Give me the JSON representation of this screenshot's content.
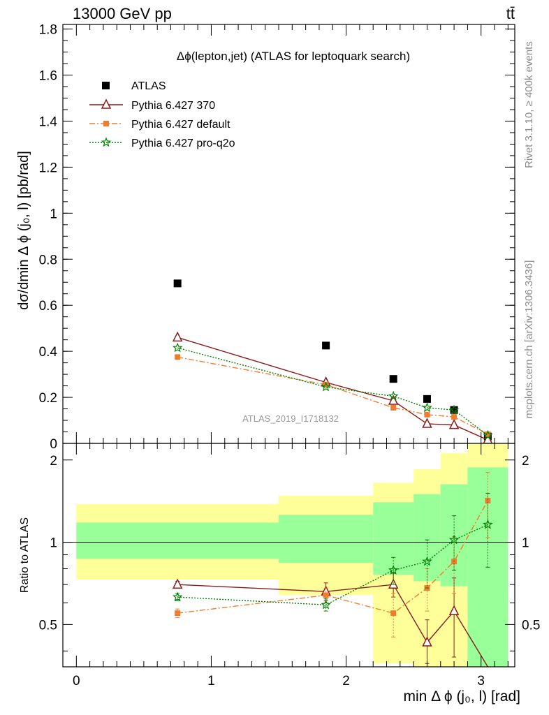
{
  "header": {
    "left": "13000 GeV pp",
    "right": "tt̄"
  },
  "side_labels": {
    "rivet": "Rivet 3.1.10, ≥ 400k events",
    "mcplots": "mcplots.cern.ch [arXiv:1306.3436]"
  },
  "analysis_id": "ATLAS_2019_I1718132",
  "chart_data": [
    {
      "type": "scatter",
      "panel": "main",
      "title": "Δϕ(lepton,jet) (ATLAS for leptoquark search)",
      "ylabel": "dσ/dmin Δ ϕ (j₀, l) [pb/rad]",
      "xlim": [
        -0.1,
        3.25
      ],
      "ylim": [
        0,
        1.82
      ],
      "yticks": [
        0,
        0.2,
        0.4,
        0.6,
        0.8,
        1,
        1.2,
        1.4,
        1.6,
        1.8
      ],
      "ytick_labels": [
        "0",
        "0.2",
        "0.4",
        "0.6",
        "0.8",
        "1",
        "1.2",
        "1.4",
        "1.6",
        "1.8"
      ],
      "legend_position": "top-left",
      "series": [
        {
          "name": "ATLAS",
          "marker": "square",
          "color": "#000000",
          "x": [
            0.75,
            1.85,
            2.35,
            2.6,
            2.8,
            3.05
          ],
          "y": [
            0.695,
            0.425,
            0.28,
            0.193,
            0.145,
            0.03
          ]
        },
        {
          "name": "Pythia 6.427 370",
          "marker": "open-triangle",
          "line": "solid",
          "color": "#8b1a1a",
          "x": [
            0.75,
            1.85,
            2.35,
            2.6,
            2.8,
            3.05
          ],
          "y": [
            0.46,
            0.265,
            0.185,
            0.085,
            0.08,
            0.015
          ]
        },
        {
          "name": "Pythia 6.427 default",
          "marker": "filled-square",
          "line": "dashdot",
          "color": "#f27c2e",
          "x": [
            0.75,
            1.85,
            2.35,
            2.6,
            2.8,
            3.05
          ],
          "y": [
            0.375,
            0.255,
            0.155,
            0.125,
            0.115,
            0.04
          ]
        },
        {
          "name": "Pythia 6.427 pro-q2o",
          "marker": "star",
          "line": "dotted",
          "color": "#008000",
          "x": [
            0.75,
            1.85,
            2.35,
            2.6,
            2.8,
            3.05
          ],
          "y": [
            0.415,
            0.245,
            0.205,
            0.155,
            0.145,
            0.035
          ]
        }
      ]
    },
    {
      "type": "scatter",
      "panel": "ratio",
      "ylabel": "Ratio to ATLAS",
      "xlabel": "min Δ ϕ (j₀, l) [rad]",
      "xlim": [
        -0.1,
        3.25
      ],
      "ylim": [
        0.35,
        2.3
      ],
      "log_y": true,
      "xticks": [
        0,
        1,
        2,
        3
      ],
      "xtick_labels": [
        "0",
        "1",
        "2",
        "3"
      ],
      "yticks": [
        0.5,
        1,
        2
      ],
      "ytick_labels": [
        "0.5",
        "1",
        "2"
      ],
      "bands": {
        "bins": [
          [
            0,
            1.5
          ],
          [
            1.5,
            2.2
          ],
          [
            2.2,
            2.5
          ],
          [
            2.5,
            2.7
          ],
          [
            2.7,
            2.9
          ],
          [
            2.9,
            3.2
          ]
        ],
        "inner": [
          [
            0.87,
            1.18
          ],
          [
            0.84,
            1.26
          ],
          [
            0.76,
            1.4
          ],
          [
            0.72,
            1.5
          ],
          [
            0.69,
            1.63
          ],
          [
            0.35,
            1.88
          ]
        ],
        "outer": [
          [
            0.73,
            1.38
          ],
          [
            0.64,
            1.48
          ],
          [
            0.36,
            1.65
          ],
          [
            0.35,
            1.85
          ],
          [
            0.35,
            2.12
          ],
          [
            0.35,
            2.3
          ]
        ],
        "inner_color": "#99ff99",
        "outer_color": "#ffff99"
      },
      "series": [
        {
          "name": "Pythia 6.427 370",
          "marker": "open-triangle",
          "line": "solid",
          "color": "#8b1a1a",
          "x": [
            0.75,
            1.85,
            2.35,
            2.6,
            2.8,
            3.05
          ],
          "y": [
            0.7,
            0.66,
            0.7,
            0.43,
            0.56,
            0.33
          ],
          "err": [
            0.02,
            0.05,
            0.07,
            0.09,
            0.18,
            0.0
          ]
        },
        {
          "name": "Pythia 6.427 default",
          "marker": "filled-square",
          "line": "dashdot",
          "color": "#f27c2e",
          "x": [
            0.75,
            1.85,
            2.35,
            2.6,
            2.8,
            3.05
          ],
          "y": [
            0.55,
            0.64,
            0.55,
            0.68,
            0.85,
            1.42
          ],
          "err": [
            0.02,
            0.04,
            0.1,
            0.12,
            0.2,
            0.38
          ]
        },
        {
          "name": "Pythia 6.427 pro-q2o",
          "marker": "star",
          "line": "dotted",
          "color": "#008000",
          "x": [
            0.75,
            1.85,
            2.35,
            2.6,
            2.8,
            3.05
          ],
          "y": [
            0.63,
            0.59,
            0.79,
            0.85,
            1.02,
            1.16
          ],
          "err": [
            0.02,
            0.03,
            0.09,
            0.17,
            0.23,
            0.35
          ]
        }
      ]
    }
  ]
}
